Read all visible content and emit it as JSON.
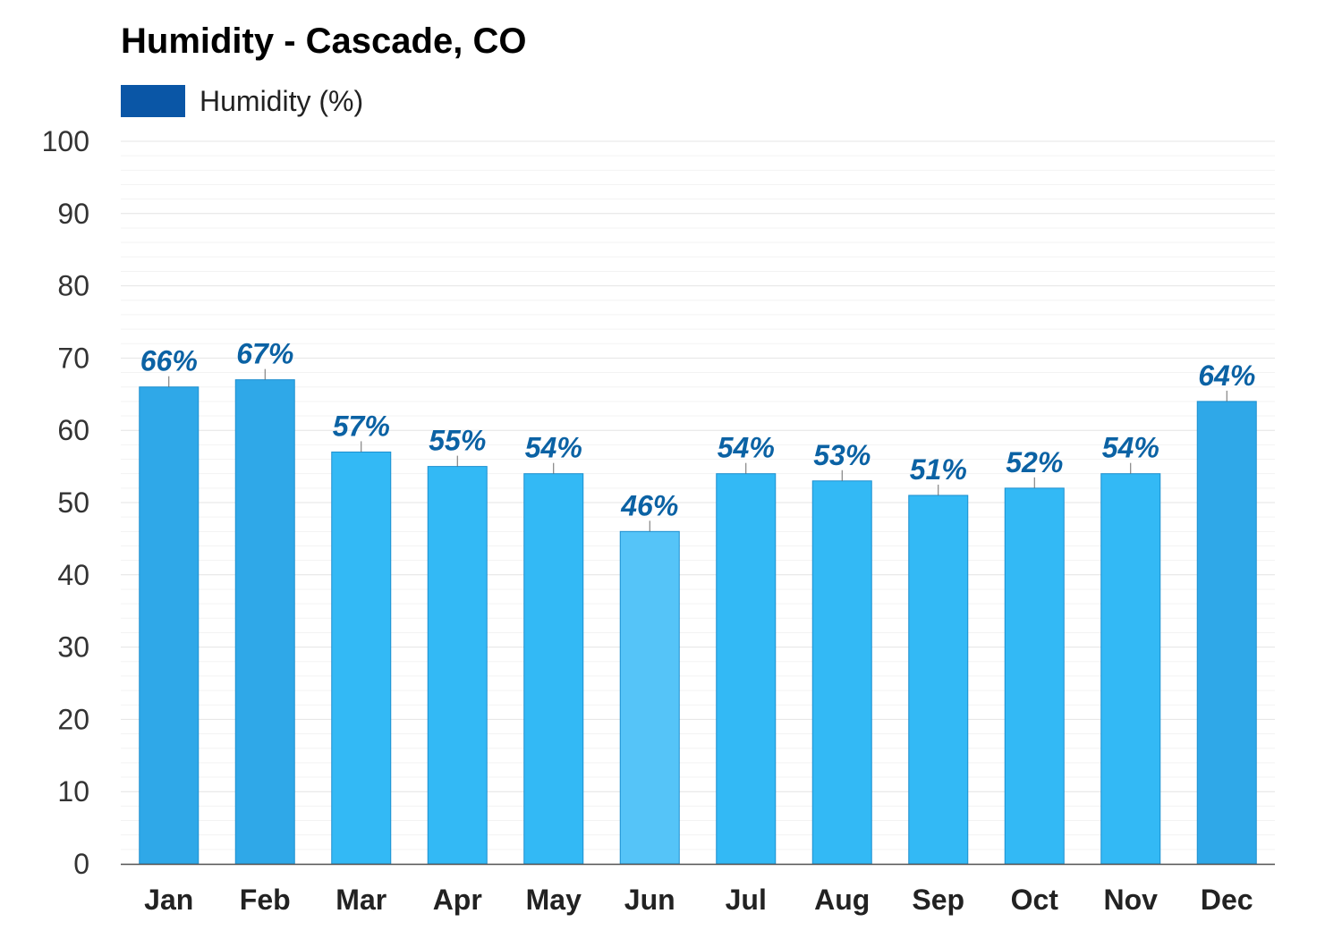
{
  "chart_data": {
    "type": "bar",
    "title": "Humidity - Cascade, CO",
    "legend_position": "top-left",
    "grid": true,
    "xlabel": "",
    "ylabel": "",
    "ylim": [
      0,
      100
    ],
    "y_ticks": [
      0,
      10,
      20,
      30,
      40,
      50,
      60,
      70,
      80,
      90,
      100
    ],
    "categories": [
      "Jan",
      "Feb",
      "Mar",
      "Apr",
      "May",
      "Jun",
      "Jul",
      "Aug",
      "Sep",
      "Oct",
      "Nov",
      "Dec"
    ],
    "series": [
      {
        "name": "Humidity (%)",
        "values": [
          66,
          67,
          57,
          55,
          54,
          46,
          54,
          53,
          51,
          52,
          54,
          64
        ],
        "labels": [
          "66%",
          "67%",
          "57%",
          "55%",
          "54%",
          "46%",
          "54%",
          "53%",
          "51%",
          "52%",
          "54%",
          "64%"
        ]
      }
    ],
    "colors": {
      "legend_swatch": "#0a56a6",
      "data_label": "#0b62a4",
      "bar_high": "#2fa8e8",
      "bar_mid": "#33b9f5",
      "bar_low": "#55c4f8",
      "bar_stroke": "#1d8fcf",
      "grid": "#e4e4e4",
      "axis": "#555555"
    }
  }
}
